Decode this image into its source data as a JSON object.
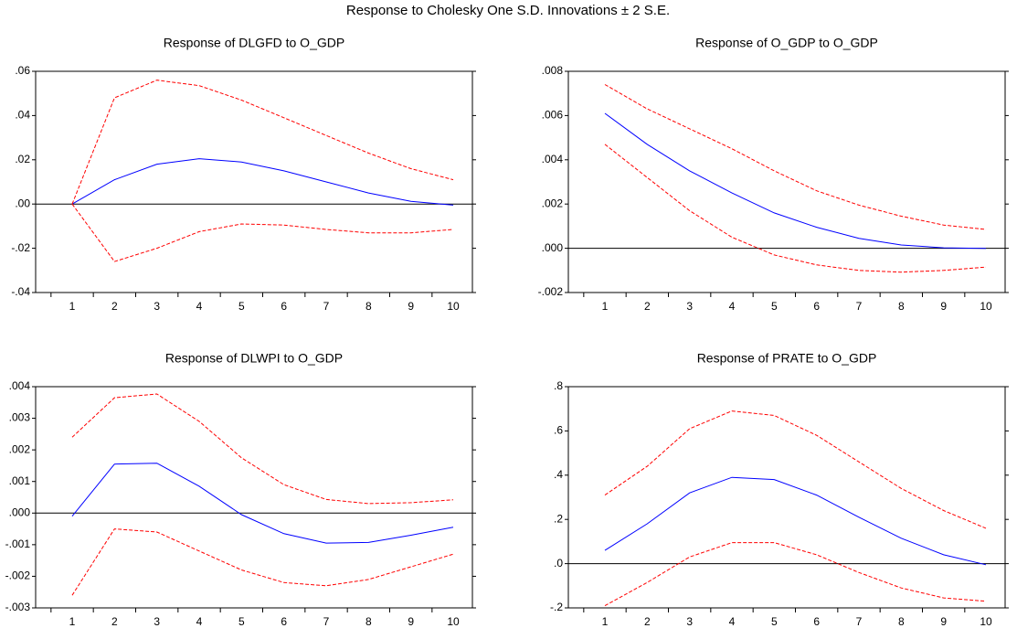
{
  "title": "Response to Cholesky One S.D. Innovations ± 2 S.E.",
  "chart_data": [
    {
      "type": "line",
      "title": "Response of DLGFD to O_GDP",
      "categories": [
        "1",
        "2",
        "3",
        "4",
        "5",
        "6",
        "7",
        "8",
        "9",
        "10"
      ],
      "series": [
        {
          "color": "#0000ff",
          "values": [
            0,
            0.011,
            0.018,
            0.0205,
            0.019,
            0.015,
            0.01,
            0.005,
            0.0012,
            -0.0005
          ]
        },
        {
          "color": "#ff0000",
          "dashed": true,
          "values": [
            0,
            0.048,
            0.056,
            0.0535,
            0.047,
            0.039,
            0.031,
            0.023,
            0.016,
            0.011
          ]
        },
        {
          "color": "#ff0000",
          "dashed": true,
          "values": [
            0,
            -0.026,
            -0.02,
            -0.0125,
            -0.009,
            -0.0095,
            -0.0115,
            -0.013,
            -0.013,
            -0.0115
          ]
        }
      ],
      "ylim": [
        -0.04,
        0.06
      ],
      "yticks": [
        {
          "value": -0.04,
          "label": "-.04"
        },
        {
          "value": -0.02,
          "label": "-.02"
        },
        {
          "value": 0,
          "label": ".00"
        },
        {
          "value": 0.02,
          "label": ".02"
        },
        {
          "value": 0.04,
          "label": ".04"
        },
        {
          "value": 0.06,
          "label": ".06"
        }
      ]
    },
    {
      "type": "line",
      "title": "Response of O_GDP to O_GDP",
      "categories": [
        "1",
        "2",
        "3",
        "4",
        "5",
        "6",
        "7",
        "8",
        "9",
        "10"
      ],
      "series": [
        {
          "color": "#0000ff",
          "values": [
            0.0061,
            0.0047,
            0.0035,
            0.0025,
            0.0016,
            0.00095,
            0.00045,
            0.00015,
            2e-05,
            -1e-05
          ]
        },
        {
          "color": "#ff0000",
          "dashed": true,
          "values": [
            0.0074,
            0.0063,
            0.0054,
            0.0045,
            0.0035,
            0.0026,
            0.00195,
            0.00145,
            0.00105,
            0.00085
          ]
        },
        {
          "color": "#ff0000",
          "dashed": true,
          "values": [
            0.0047,
            0.0032,
            0.0017,
            0.0005,
            -0.0003,
            -0.00075,
            -0.001,
            -0.00108,
            -0.001,
            -0.00085
          ]
        }
      ],
      "ylim": [
        -0.002,
        0.008
      ],
      "yticks": [
        {
          "value": -0.002,
          "label": "-.002"
        },
        {
          "value": 0,
          "label": ".000"
        },
        {
          "value": 0.002,
          "label": ".002"
        },
        {
          "value": 0.004,
          "label": ".004"
        },
        {
          "value": 0.006,
          "label": ".006"
        },
        {
          "value": 0.008,
          "label": ".008"
        }
      ]
    },
    {
      "type": "line",
      "title": "Response of DLWPI to O_GDP",
      "categories": [
        "1",
        "2",
        "3",
        "4",
        "5",
        "6",
        "7",
        "8",
        "9",
        "10"
      ],
      "series": [
        {
          "color": "#0000ff",
          "values": [
            -0.0001,
            0.00155,
            0.00158,
            0.00085,
            -5e-05,
            -0.00065,
            -0.00095,
            -0.00093,
            -0.0007,
            -0.00045
          ]
        },
        {
          "color": "#ff0000",
          "dashed": true,
          "values": [
            0.0024,
            0.00365,
            0.00377,
            0.0029,
            0.00175,
            0.0009,
            0.00043,
            0.0003,
            0.00033,
            0.00042
          ]
        },
        {
          "color": "#ff0000",
          "dashed": true,
          "values": [
            -0.0026,
            -0.0005,
            -0.0006,
            -0.0012,
            -0.0018,
            -0.0022,
            -0.0023,
            -0.0021,
            -0.0017,
            -0.0013
          ]
        }
      ],
      "ylim": [
        -0.003,
        0.004
      ],
      "yticks": [
        {
          "value": -0.003,
          "label": "-.003"
        },
        {
          "value": -0.002,
          "label": "-.002"
        },
        {
          "value": -0.001,
          "label": "-.001"
        },
        {
          "value": 0,
          "label": ".000"
        },
        {
          "value": 0.001,
          "label": ".001"
        },
        {
          "value": 0.002,
          "label": ".002"
        },
        {
          "value": 0.003,
          "label": ".003"
        },
        {
          "value": 0.004,
          "label": ".004"
        }
      ]
    },
    {
      "type": "line",
      "title": "Response of PRATE to O_GDP",
      "categories": [
        "1",
        "2",
        "3",
        "4",
        "5",
        "6",
        "7",
        "8",
        "9",
        "10"
      ],
      "series": [
        {
          "color": "#0000ff",
          "values": [
            0.06,
            0.18,
            0.32,
            0.39,
            0.38,
            0.31,
            0.21,
            0.115,
            0.04,
            -0.005
          ]
        },
        {
          "color": "#ff0000",
          "dashed": true,
          "values": [
            0.31,
            0.44,
            0.61,
            0.69,
            0.67,
            0.58,
            0.46,
            0.34,
            0.24,
            0.16
          ]
        },
        {
          "color": "#ff0000",
          "dashed": true,
          "values": [
            -0.19,
            -0.085,
            0.03,
            0.095,
            0.095,
            0.04,
            -0.04,
            -0.11,
            -0.155,
            -0.17
          ]
        }
      ],
      "ylim": [
        -0.2,
        0.8
      ],
      "yticks": [
        {
          "value": -0.2,
          "label": "-.2"
        },
        {
          "value": 0,
          "label": ".0"
        },
        {
          "value": 0.2,
          "label": ".2"
        },
        {
          "value": 0.4,
          "label": ".4"
        },
        {
          "value": 0.6,
          "label": ".6"
        },
        {
          "value": 0.8,
          "label": ".8"
        }
      ]
    }
  ]
}
